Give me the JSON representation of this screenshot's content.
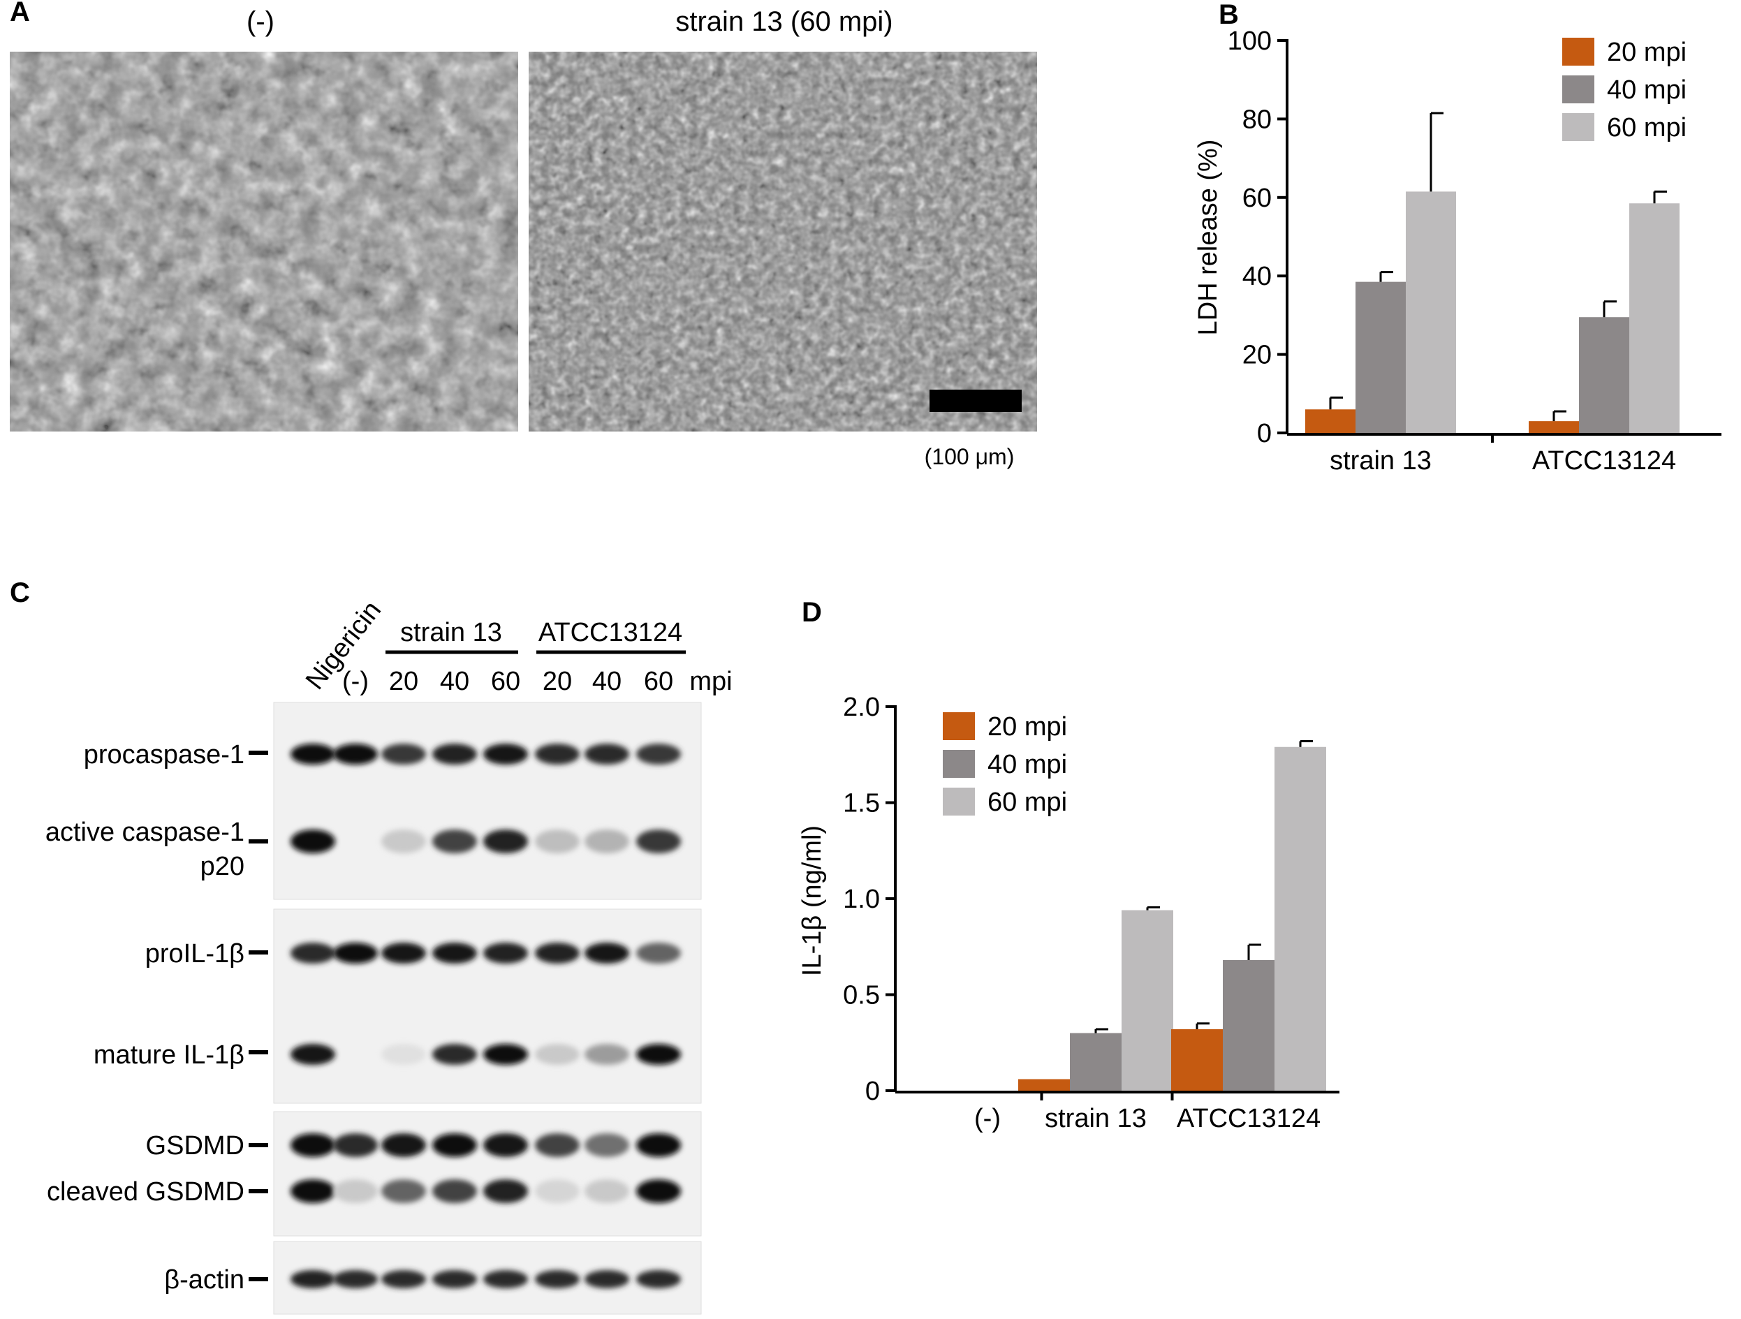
{
  "panel_labels": {
    "a": "A",
    "b": "B",
    "c": "C",
    "d": "D"
  },
  "panel_a": {
    "left_title": "(-)",
    "right_title": "strain 13 (60 mpi)",
    "scale_bar_label": "(100 μm)"
  },
  "colors": {
    "mpi20": "#C55A11",
    "mpi40": "#8C8889",
    "mpi60": "#BDBBBC"
  },
  "chart_data": [
    {
      "panel": "B",
      "type": "bar",
      "title": "",
      "ylabel": "LDH release (%)",
      "xlabel": "",
      "ylim": [
        0,
        100
      ],
      "yticks": [
        "0",
        "20",
        "40",
        "60",
        "80",
        "100"
      ],
      "categories": [
        "strain 13",
        "ATCC13124"
      ],
      "legend_position": "top-right",
      "series": [
        {
          "name": "20 mpi",
          "values": [
            6,
            3
          ],
          "errors": [
            3,
            2.5
          ]
        },
        {
          "name": "40 mpi",
          "values": [
            38.5,
            29.5
          ],
          "errors": [
            2.5,
            4
          ]
        },
        {
          "name": "60 mpi",
          "values": [
            61.5,
            58.5
          ],
          "errors": [
            20,
            3
          ]
        }
      ]
    },
    {
      "panel": "D",
      "type": "bar",
      "title": "",
      "ylabel": "IL-1β (ng/ml)",
      "xlabel": "",
      "ylim": [
        0,
        2.0
      ],
      "yticks": [
        "0",
        "0.5",
        "1.0",
        "1.5",
        "2.0"
      ],
      "categories": [
        "(-)",
        "strain 13",
        "ATCC13124"
      ],
      "legend_position": "top-left",
      "series": [
        {
          "name": "20 mpi",
          "values": [
            0,
            0.06,
            0.32
          ],
          "errors": [
            0,
            0,
            0.03
          ]
        },
        {
          "name": "40 mpi",
          "values": [
            0,
            0.3,
            0.68
          ],
          "errors": [
            0,
            0.02,
            0.08
          ]
        },
        {
          "name": "60 mpi",
          "values": [
            0,
            0.94,
            1.79
          ],
          "errors": [
            0,
            0.015,
            0.03
          ]
        }
      ]
    }
  ],
  "blot": {
    "lane_labels": [
      "Nigericin",
      "(-)",
      "20",
      "40",
      "60",
      "20",
      "40",
      "60"
    ],
    "lane_unit": "mpi",
    "group_labels": [
      "strain 13",
      "ATCC13124"
    ],
    "bands": [
      "procaspase-1",
      "active caspase-1",
      "p20",
      "proIL-1β",
      "mature IL-1β",
      "GSDMD",
      "cleaved GSDMD",
      "β-actin"
    ],
    "intensity": {
      "procaspase": [
        1.0,
        1.0,
        0.8,
        0.9,
        0.95,
        0.85,
        0.85,
        0.8
      ],
      "active": [
        1.0,
        0.0,
        0.15,
        0.75,
        0.9,
        0.2,
        0.25,
        0.8
      ],
      "prol1b": [
        0.85,
        1.0,
        0.95,
        0.95,
        0.9,
        0.9,
        0.95,
        0.6
      ],
      "maturel1b": [
        0.95,
        0.0,
        0.05,
        0.85,
        1.0,
        0.15,
        0.35,
        1.0
      ],
      "gsdmd": [
        1.0,
        0.85,
        0.95,
        1.0,
        0.95,
        0.75,
        0.55,
        1.0
      ],
      "cleaved": [
        1.0,
        0.15,
        0.6,
        0.75,
        0.9,
        0.1,
        0.15,
        1.0
      ],
      "actin": [
        0.9,
        0.85,
        0.85,
        0.85,
        0.85,
        0.85,
        0.85,
        0.85
      ]
    }
  }
}
